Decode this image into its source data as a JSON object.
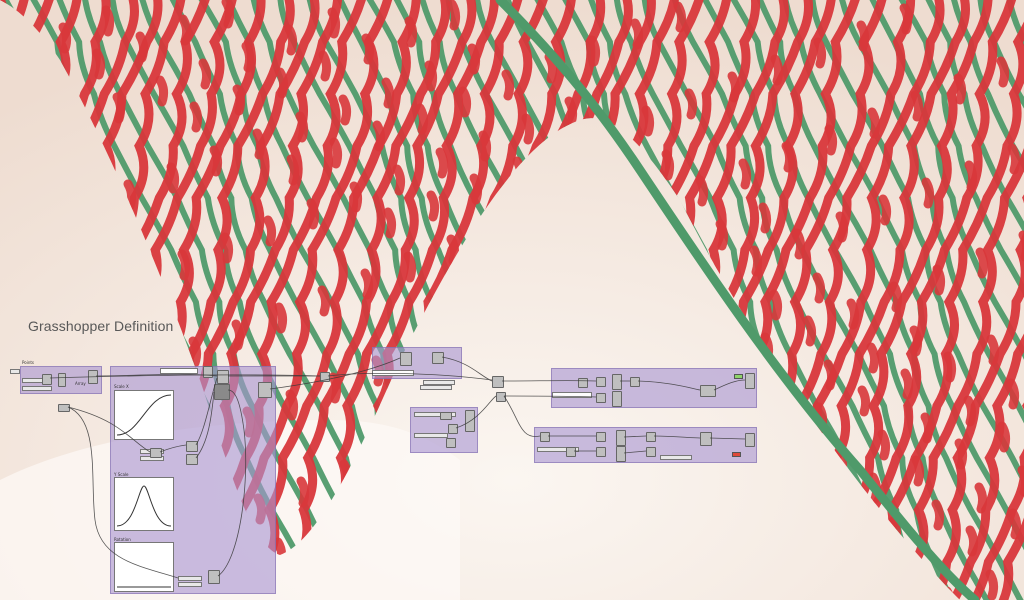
{
  "title": "Grasshopper Definition",
  "colors": {
    "background": "#f6ece5",
    "red_strand": "#d8373b",
    "green_strand": "#4f9a6a",
    "group_fill": "#aa96d2",
    "wire": "#3a3a3a"
  },
  "groups": {
    "points": "Points",
    "array": "Array",
    "scale_x": "Scale X",
    "y_scale": "Y Scale",
    "rotation": "Rotation"
  }
}
